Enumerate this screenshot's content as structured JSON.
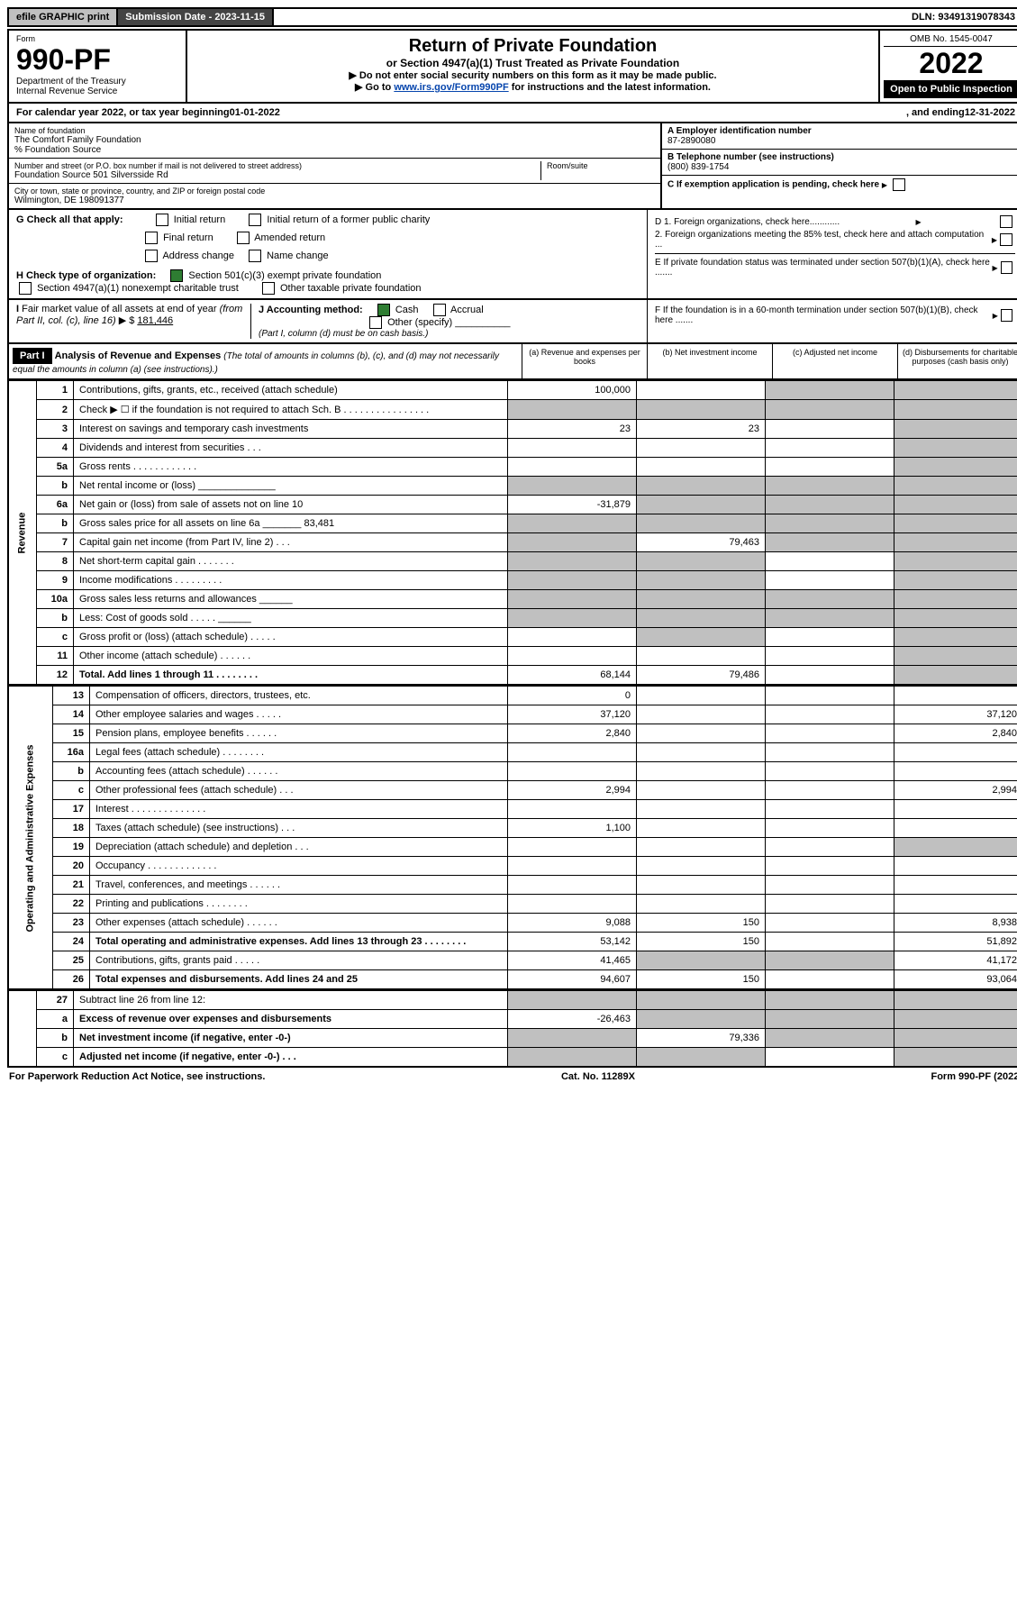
{
  "topbar": {
    "efile": "efile GRAPHIC print",
    "submission_label": "Submission Date - 2023-11-15",
    "dln": "DLN: 93491319078343"
  },
  "header": {
    "form_label": "Form",
    "form_number": "990-PF",
    "dept1": "Department of the Treasury",
    "dept2": "Internal Revenue Service",
    "title": "Return of Private Foundation",
    "subtitle": "or Section 4947(a)(1) Trust Treated as Private Foundation",
    "instr1": "▶ Do not enter social security numbers on this form as it may be made public.",
    "instr2_prefix": "▶ Go to ",
    "instr2_link": "www.irs.gov/Form990PF",
    "instr2_suffix": " for instructions and the latest information.",
    "omb": "OMB No. 1545-0047",
    "year": "2022",
    "open": "Open to Public Inspection"
  },
  "calendar": {
    "prefix": "For calendar year 2022, or tax year beginning ",
    "begin": "01-01-2022",
    "mid": ", and ending ",
    "end": "12-31-2022"
  },
  "info": {
    "name_label": "Name of foundation",
    "name": "The Comfort Family Foundation",
    "co": "% Foundation Source",
    "addr_label": "Number and street (or P.O. box number if mail is not delivered to street address)",
    "addr": "Foundation Source 501 Silversside Rd",
    "room_label": "Room/suite",
    "city_label": "City or town, state or province, country, and ZIP or foreign postal code",
    "city": "Wilmington, DE 198091377",
    "a_label": "A Employer identification number",
    "a_val": "87-2890080",
    "b_label": "B Telephone number (see instructions)",
    "b_val": "(800) 839-1754",
    "c_label": "C If exemption application is pending, check here",
    "d1": "D 1. Foreign organizations, check here............",
    "d2": "2. Foreign organizations meeting the 85% test, check here and attach computation ...",
    "e": "E If private foundation status was terminated under section 507(b)(1)(A), check here .......",
    "f": "F If the foundation is in a 60-month termination under section 507(b)(1)(B), check here .......",
    "g_label": "G Check all that apply:",
    "g_opts": [
      "Initial return",
      "Initial return of a former public charity",
      "Final return",
      "Amended return",
      "Address change",
      "Name change"
    ],
    "h_label": "H Check type of organization:",
    "h_opt1": "Section 501(c)(3) exempt private foundation",
    "h_opt2": "Section 4947(a)(1) nonexempt charitable trust",
    "h_opt3": "Other taxable private foundation",
    "i_label": "I Fair market value of all assets at end of year (from Part II, col. (c), line 16) ▶ $ ",
    "i_val": "181,446",
    "j_label": "J Accounting method:",
    "j_cash": "Cash",
    "j_accrual": "Accrual",
    "j_other": "Other (specify)",
    "j_note": "(Part I, column (d) must be on cash basis.)"
  },
  "part1": {
    "tag": "Part I",
    "title": "Analysis of Revenue and Expenses",
    "note": " (The total of amounts in columns (b), (c), and (d) may not necessarily equal the amounts in column (a) (see instructions).)",
    "col_a": "(a) Revenue and expenses per books",
    "col_b": "(b) Net investment income",
    "col_c": "(c) Adjusted net income",
    "col_d": "(d) Disbursements for charitable purposes (cash basis only)"
  },
  "side_labels": {
    "rev": "Revenue",
    "exp": "Operating and Administrative Expenses"
  },
  "rows": [
    {
      "n": "1",
      "d": "Contributions, gifts, grants, etc., received (attach schedule)",
      "a": "100,000",
      "b": "",
      "c": "g",
      "dd": "g"
    },
    {
      "n": "2",
      "d": "Check ▶ ☐ if the foundation is not required to attach Sch. B  .  .  .  .  .  .  .  .  .  .  .  .  .  .  .  .",
      "a": "g",
      "b": "g",
      "c": "g",
      "dd": "g"
    },
    {
      "n": "3",
      "d": "Interest on savings and temporary cash investments",
      "a": "23",
      "b": "23",
      "c": "",
      "dd": "g"
    },
    {
      "n": "4",
      "d": "Dividends and interest from securities  .  .  .",
      "a": "",
      "b": "",
      "c": "",
      "dd": "g"
    },
    {
      "n": "5a",
      "d": "Gross rents  .  .  .  .  .  .  .  .  .  .  .  .",
      "a": "",
      "b": "",
      "c": "",
      "dd": "g"
    },
    {
      "n": "b",
      "d": "Net rental income or (loss) ______________",
      "a": "g",
      "b": "g",
      "c": "g",
      "dd": "g"
    },
    {
      "n": "6a",
      "d": "Net gain or (loss) from sale of assets not on line 10",
      "a": "-31,879",
      "b": "g",
      "c": "g",
      "dd": "g"
    },
    {
      "n": "b",
      "d": "Gross sales price for all assets on line 6a _______ 83,481",
      "a": "g",
      "b": "g",
      "c": "g",
      "dd": "g"
    },
    {
      "n": "7",
      "d": "Capital gain net income (from Part IV, line 2)  .  .  .",
      "a": "g",
      "b": "79,463",
      "c": "g",
      "dd": "g"
    },
    {
      "n": "8",
      "d": "Net short-term capital gain  .  .  .  .  .  .  .",
      "a": "g",
      "b": "g",
      "c": "",
      "dd": "g"
    },
    {
      "n": "9",
      "d": "Income modifications  .  .  .  .  .  .  .  .  .",
      "a": "g",
      "b": "g",
      "c": "",
      "dd": "g"
    },
    {
      "n": "10a",
      "d": "Gross sales less returns and allowances ______",
      "a": "g",
      "b": "g",
      "c": "g",
      "dd": "g"
    },
    {
      "n": "b",
      "d": "Less: Cost of goods sold  .  .  .  .  . ______",
      "a": "g",
      "b": "g",
      "c": "g",
      "dd": "g"
    },
    {
      "n": "c",
      "d": "Gross profit or (loss) (attach schedule)  .  .  .  .  .",
      "a": "",
      "b": "g",
      "c": "",
      "dd": "g"
    },
    {
      "n": "11",
      "d": "Other income (attach schedule)  .  .  .  .  .  .",
      "a": "",
      "b": "",
      "c": "",
      "dd": "g"
    },
    {
      "n": "12",
      "d": "Total. Add lines 1 through 11  .  .  .  .  .  .  .  .",
      "a": "68,144",
      "b": "79,486",
      "c": "",
      "dd": "g",
      "bold": true
    }
  ],
  "exp_rows": [
    {
      "n": "13",
      "d": "Compensation of officers, directors, trustees, etc.",
      "a": "0",
      "b": "",
      "c": "",
      "dd": ""
    },
    {
      "n": "14",
      "d": "Other employee salaries and wages  .  .  .  .  .",
      "a": "37,120",
      "b": "",
      "c": "",
      "dd": "37,120"
    },
    {
      "n": "15",
      "d": "Pension plans, employee benefits  .  .  .  .  .  .",
      "a": "2,840",
      "b": "",
      "c": "",
      "dd": "2,840"
    },
    {
      "n": "16a",
      "d": "Legal fees (attach schedule)  .  .  .  .  .  .  .  .",
      "a": "",
      "b": "",
      "c": "",
      "dd": ""
    },
    {
      "n": "b",
      "d": "Accounting fees (attach schedule)  .  .  .  .  .  .",
      "a": "",
      "b": "",
      "c": "",
      "dd": ""
    },
    {
      "n": "c",
      "d": "Other professional fees (attach schedule)  .  .  .",
      "a": "2,994",
      "b": "",
      "c": "",
      "dd": "2,994"
    },
    {
      "n": "17",
      "d": "Interest  .  .  .  .  .  .  .  .  .  .  .  .  .  .",
      "a": "",
      "b": "",
      "c": "",
      "dd": ""
    },
    {
      "n": "18",
      "d": "Taxes (attach schedule) (see instructions)  .  .  .",
      "a": "1,100",
      "b": "",
      "c": "",
      "dd": ""
    },
    {
      "n": "19",
      "d": "Depreciation (attach schedule) and depletion  .  .  .",
      "a": "",
      "b": "",
      "c": "",
      "dd": "g"
    },
    {
      "n": "20",
      "d": "Occupancy  .  .  .  .  .  .  .  .  .  .  .  .  .",
      "a": "",
      "b": "",
      "c": "",
      "dd": ""
    },
    {
      "n": "21",
      "d": "Travel, conferences, and meetings  .  .  .  .  .  .",
      "a": "",
      "b": "",
      "c": "",
      "dd": ""
    },
    {
      "n": "22",
      "d": "Printing and publications  .  .  .  .  .  .  .  .",
      "a": "",
      "b": "",
      "c": "",
      "dd": ""
    },
    {
      "n": "23",
      "d": "Other expenses (attach schedule)  .  .  .  .  .  .",
      "a": "9,088",
      "b": "150",
      "c": "",
      "dd": "8,938"
    },
    {
      "n": "24",
      "d": "Total operating and administrative expenses. Add lines 13 through 23  .  .  .  .  .  .  .  .",
      "a": "53,142",
      "b": "150",
      "c": "",
      "dd": "51,892",
      "bold": true
    },
    {
      "n": "25",
      "d": "Contributions, gifts, grants paid  .  .  .  .  .",
      "a": "41,465",
      "b": "g",
      "c": "g",
      "dd": "41,172"
    },
    {
      "n": "26",
      "d": "Total expenses and disbursements. Add lines 24 and 25",
      "a": "94,607",
      "b": "150",
      "c": "",
      "dd": "93,064",
      "bold": true
    }
  ],
  "net_rows": [
    {
      "n": "27",
      "d": "Subtract line 26 from line 12:",
      "a": "g",
      "b": "g",
      "c": "g",
      "dd": "g"
    },
    {
      "n": "a",
      "d": "Excess of revenue over expenses and disbursements",
      "a": "-26,463",
      "b": "g",
      "c": "g",
      "dd": "g",
      "bold": true
    },
    {
      "n": "b",
      "d": "Net investment income (if negative, enter -0-)",
      "a": "g",
      "b": "79,336",
      "c": "g",
      "dd": "g",
      "bold": true
    },
    {
      "n": "c",
      "d": "Adjusted net income (if negative, enter -0-)  .  .  .",
      "a": "g",
      "b": "g",
      "c": "",
      "dd": "g",
      "bold": true
    }
  ],
  "footer": {
    "left": "For Paperwork Reduction Act Notice, see instructions.",
    "mid": "Cat. No. 11289X",
    "right": "Form 990-PF (2022)"
  },
  "colors": {
    "grey": "#c0c0c0",
    "dark": "#444444",
    "green": "#2e7d32",
    "link": "#0645ad"
  }
}
